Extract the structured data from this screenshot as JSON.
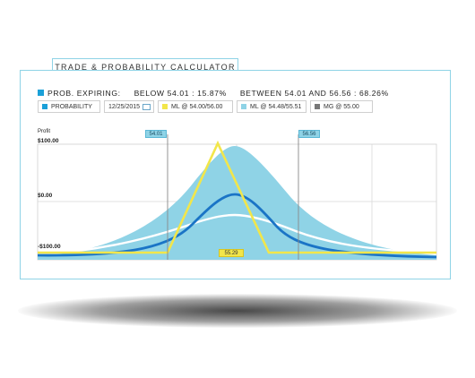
{
  "title": "TRADE & PROBABILITY CALCULATOR",
  "stats": {
    "prefix": "PROB. EXPIRING:",
    "below_label": "BELOW 54.01  :  15.87%",
    "between_label": "BETWEEN 54.01 AND 56.56  :  68.26%"
  },
  "legend": {
    "probability": "PROBABILITY",
    "date": "12/25/2015",
    "ml1": "ML @ 54.00/56.00",
    "ml2": "ML @ 54.48/55.51",
    "mg": "MG @ 55.00"
  },
  "colors": {
    "probability": "#1aa0d8",
    "ml1": "#f2e64a",
    "ml2": "#8fd3e6",
    "mg": "#777777"
  },
  "axis": {
    "profit_label": "Profit",
    "y_labels": [
      "$100.00",
      "$0.00",
      "-$100.00"
    ]
  },
  "markers": {
    "left": "54.01",
    "right": "56.56",
    "mid": "55.29"
  }
}
